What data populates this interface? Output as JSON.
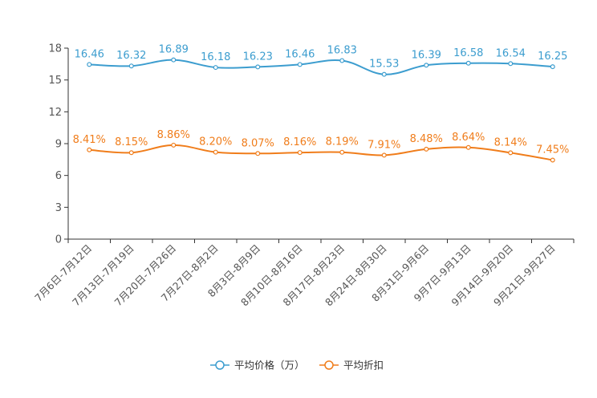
{
  "chart_data": {
    "type": "line",
    "categories": [
      "7月6日-7月12日",
      "7月13日-7月19日",
      "7月20日-7月26日",
      "7月27日-8月2日",
      "8月3日-8月9日",
      "8月10日-8月16日",
      "8月17日-8月23日",
      "8月24日-8月30日",
      "8月31日-9月6日",
      "9月7日-9月13日",
      "9月14日-9月20日",
      "9月21日-9月27日"
    ],
    "ylim": [
      0,
      18
    ],
    "yticks": [
      0,
      3,
      6,
      9,
      12,
      15,
      18
    ],
    "ytick_labels": [
      "0",
      "3",
      "6",
      "9",
      "12",
      "15",
      "18"
    ],
    "series": [
      {
        "name": "平均价格（万）",
        "color": "#3c9dcf",
        "values": [
          16.46,
          16.32,
          16.89,
          16.18,
          16.23,
          16.46,
          16.83,
          15.53,
          16.39,
          16.58,
          16.54,
          16.25
        ],
        "labels": [
          "16.46",
          "16.32",
          "16.89",
          "16.18",
          "16.23",
          "16.46",
          "16.83",
          "15.53",
          "16.39",
          "16.58",
          "16.54",
          "16.25"
        ]
      },
      {
        "name": "平均折扣",
        "color": "#f07d1b",
        "values": [
          8.41,
          8.15,
          8.86,
          8.2,
          8.07,
          8.16,
          8.19,
          7.91,
          8.48,
          8.64,
          8.14,
          7.45
        ],
        "labels": [
          "8.41%",
          "8.15%",
          "8.86%",
          "8.20%",
          "8.07%",
          "8.16%",
          "8.19%",
          "7.91%",
          "8.48%",
          "8.64%",
          "8.14%",
          "7.45%"
        ]
      }
    ],
    "legend_position": "bottom-center"
  }
}
